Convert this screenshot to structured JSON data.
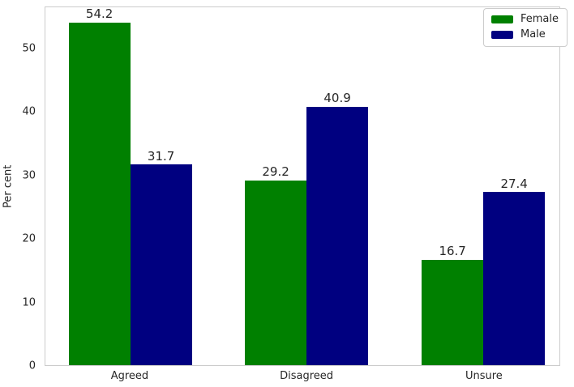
{
  "figure": {
    "background": "#ffffff",
    "spine_color": "#cccccc",
    "text_color": "#262626"
  },
  "chart_data": {
    "type": "bar",
    "title": "",
    "categories": [
      "Agreed",
      "Disagreed",
      "Unsure"
    ],
    "series": [
      {
        "name": "Female",
        "color": "#008000",
        "values": [
          54.2,
          29.2,
          16.7
        ]
      },
      {
        "name": "Male",
        "color": "#000080",
        "values": [
          31.7,
          40.9,
          27.4
        ]
      }
    ],
    "xlabel": "",
    "ylabel": "Per cent",
    "yticks": [
      0,
      10,
      20,
      30,
      40,
      50
    ],
    "ylim": [
      0,
      56.6
    ],
    "bar_value_labels": true,
    "grid": false,
    "legend": {
      "position": "upper right",
      "entries": [
        "Female",
        "Male"
      ]
    }
  }
}
